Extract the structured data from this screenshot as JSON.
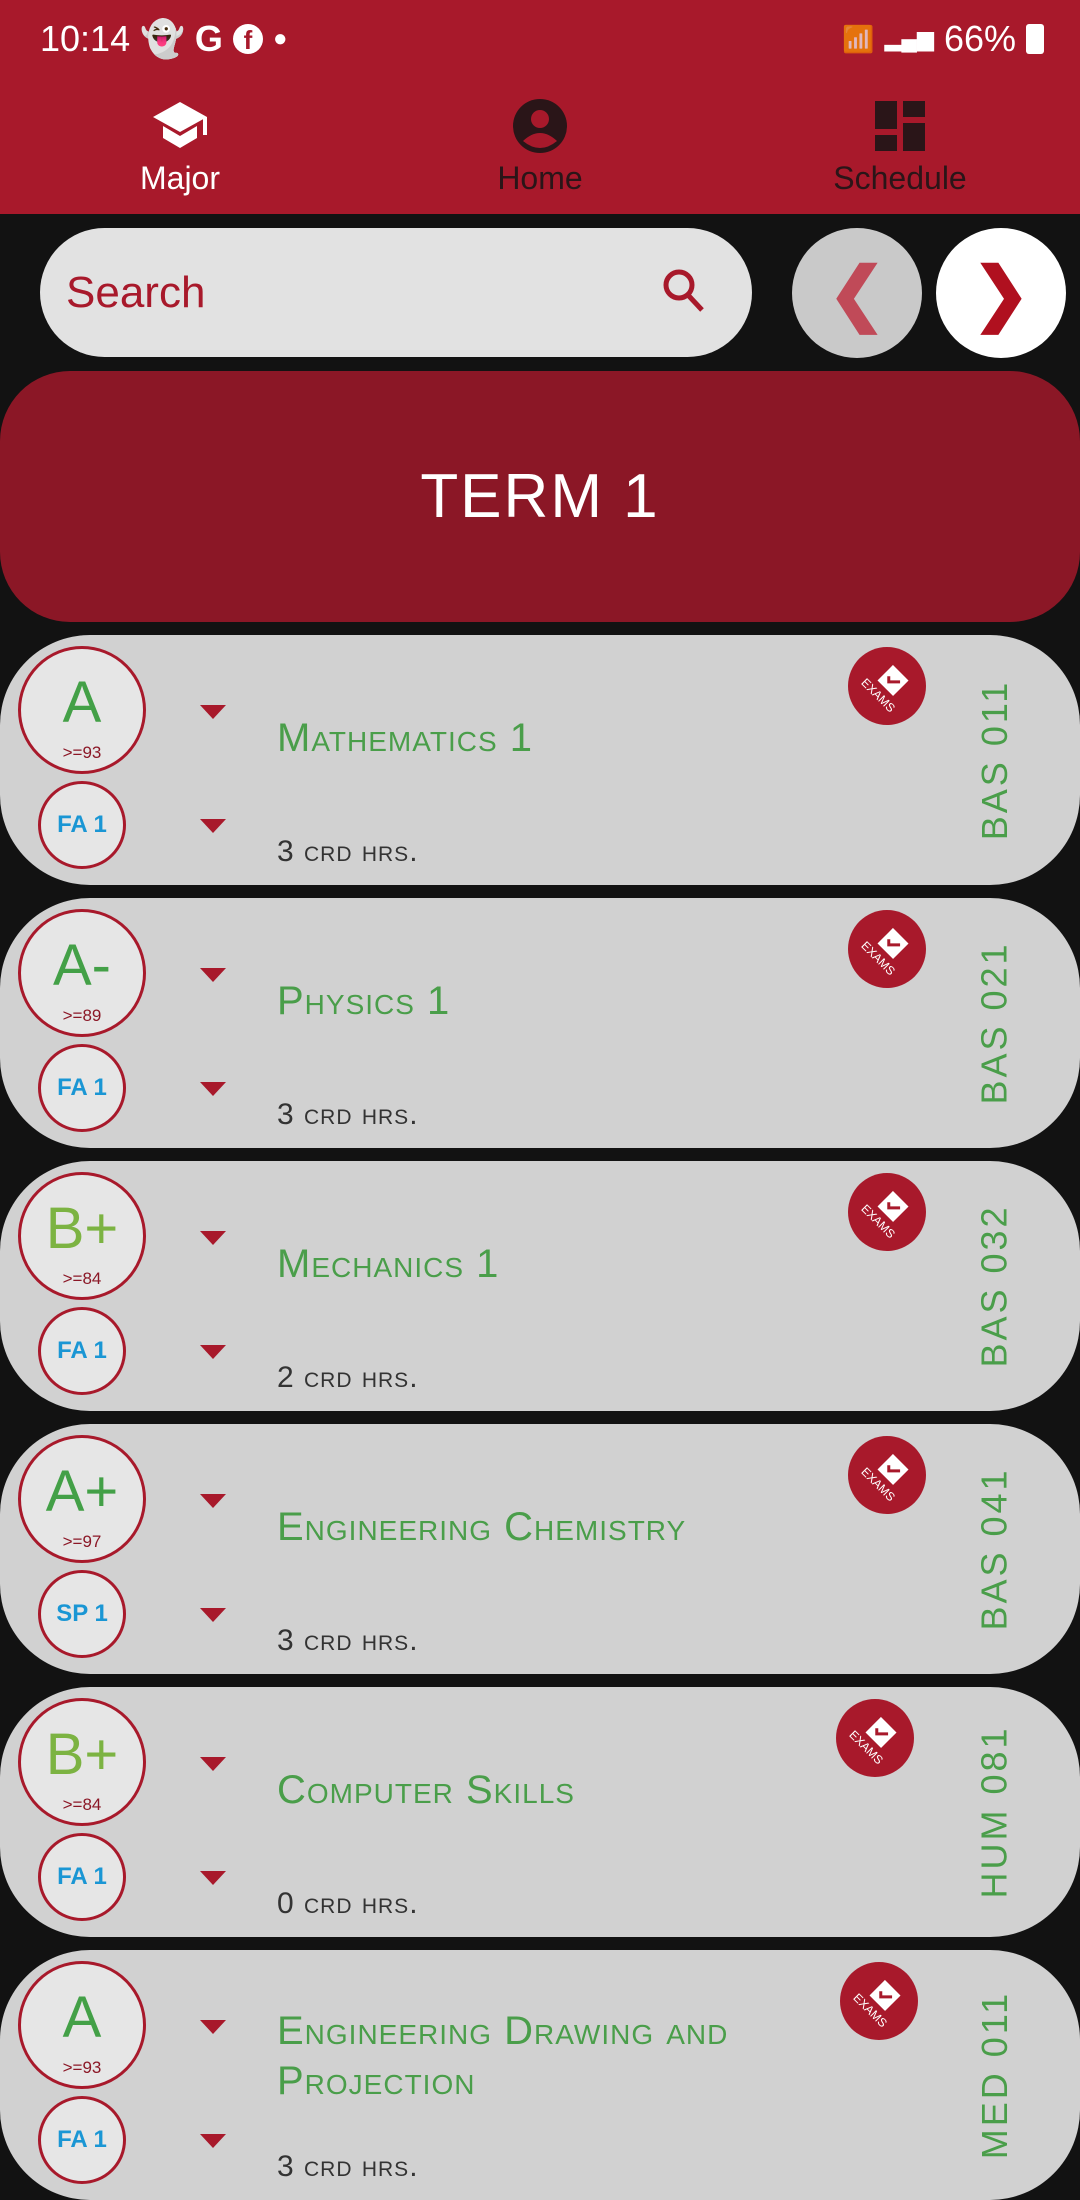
{
  "status_bar": {
    "time": "10:14",
    "notifications": [
      "snapchat-icon",
      "google-icon",
      "facebook-icon",
      "dot-icon"
    ],
    "battery": "66%"
  },
  "nav": {
    "tabs": [
      {
        "label": "Major",
        "icon": "graduation-cap-icon",
        "active": true
      },
      {
        "label": "Home",
        "icon": "account-circle-icon",
        "active": false
      },
      {
        "label": "Schedule",
        "icon": "dashboard-icon",
        "active": false
      }
    ]
  },
  "search": {
    "placeholder": "Search"
  },
  "pager": {
    "prev": "❮",
    "next": "❯"
  },
  "term": {
    "title": "TERM 1"
  },
  "colors": {
    "primary": "#a8192b",
    "banner": "#8b1726",
    "card": "#d1d1d1",
    "course_title": "#4a9e4a",
    "grade_b": "#8bc34a",
    "semester": "#1a96d4"
  },
  "courses": [
    {
      "grade": "A",
      "min": ">=93",
      "semester": "FA 1",
      "title": "Mathematics 1",
      "credits": "3 crd hrs.",
      "code": "BAS 011",
      "badge": "EXAMS",
      "grade_color": "#43a047"
    },
    {
      "grade": "A-",
      "min": ">=89",
      "semester": "FA 1",
      "title": "Physics 1",
      "credits": "3 crd hrs.",
      "code": "BAS 021",
      "badge": "EXAMS",
      "grade_color": "#43a047"
    },
    {
      "grade": "B+",
      "min": ">=84",
      "semester": "FA 1",
      "title": "Mechanics 1",
      "credits": "2 crd hrs.",
      "code": "BAS 032",
      "badge": "EXAMS",
      "grade_color": "#7cb342"
    },
    {
      "grade": "A+",
      "min": ">=97",
      "semester": "SP 1",
      "title": "Engineering Chemistry",
      "credits": "3 crd hrs.",
      "code": "BAS 041",
      "badge": "EXAMS",
      "grade_color": "#43a047"
    },
    {
      "grade": "B+",
      "min": ">=84",
      "semester": "FA 1",
      "title": "Computer Skills",
      "credits": "0 crd hrs.",
      "code": "HUM 081",
      "badge": "EXAMS",
      "grade_color": "#7cb342"
    },
    {
      "grade": "A",
      "min": ">=93",
      "semester": "FA 1",
      "title": "Engineering Drawing and Projection",
      "credits": "3 crd hrs.",
      "code": "MED 011",
      "badge": "EXAMS",
      "grade_color": "#43a047"
    }
  ]
}
